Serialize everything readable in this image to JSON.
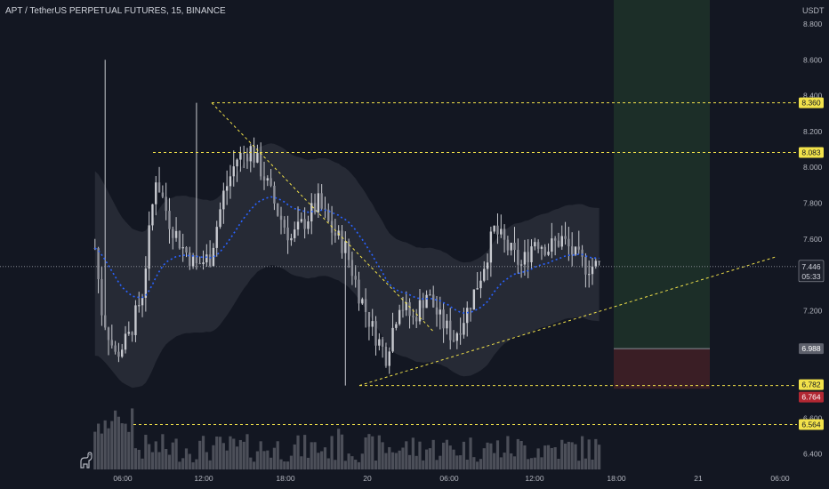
{
  "header": {
    "title": "APT / TetherUS PERPETUAL FUTURES, 15, BINANCE",
    "unit": "USDT"
  },
  "logo": {
    "icon": "tradingview-dino-icon"
  },
  "chart_data": {
    "type": "candlestick",
    "symbol": "APT / TetherUS PERPETUAL FUTURES",
    "interval": "15",
    "exchange": "BINANCE",
    "y_axis": {
      "unit": "USDT",
      "ylim": [
        6.33,
        8.93
      ],
      "ticks": [
        "8.800",
        "8.600",
        "8.400",
        "8.200",
        "8.000",
        "7.800",
        "7.600",
        "7.400",
        "7.200",
        "7.000",
        "6.800",
        "6.600",
        "6.400"
      ]
    },
    "x_axis": {
      "tick_labels": [
        "06:00",
        "12:00",
        "18:00",
        "20",
        "06:00",
        "12:00",
        "18:00",
        "21",
        "06:00"
      ]
    },
    "last_price": {
      "value": "7.446",
      "countdown": "05:33"
    },
    "price_tags": [
      {
        "value": "8.360",
        "style": "yellow"
      },
      {
        "value": "8.083",
        "style": "yellow"
      },
      {
        "value": "6.988",
        "style": "gray"
      },
      {
        "value": "6.782",
        "style": "yellow"
      },
      {
        "value": "6.764",
        "style": "red"
      },
      {
        "value": "6.564",
        "style": "yellow"
      }
    ],
    "horizontal_levels": [
      8.36,
      8.083,
      6.782,
      6.564
    ],
    "position": {
      "entry": 6.988,
      "target": 8.93,
      "stop": 6.764
    },
    "colors": {
      "background": "#131722",
      "candle": "#c8cad0",
      "level_line": "#f2e24a",
      "price_tag": "#f2e24a",
      "stop_tag": "#b22833",
      "entry_tag": "#5d606b",
      "moving_average": "#2962ff",
      "band": "#363a45",
      "profit_zone": "#1c2e28",
      "loss_zone": "#3a1e25",
      "volume": "#7b7e87"
    }
  }
}
